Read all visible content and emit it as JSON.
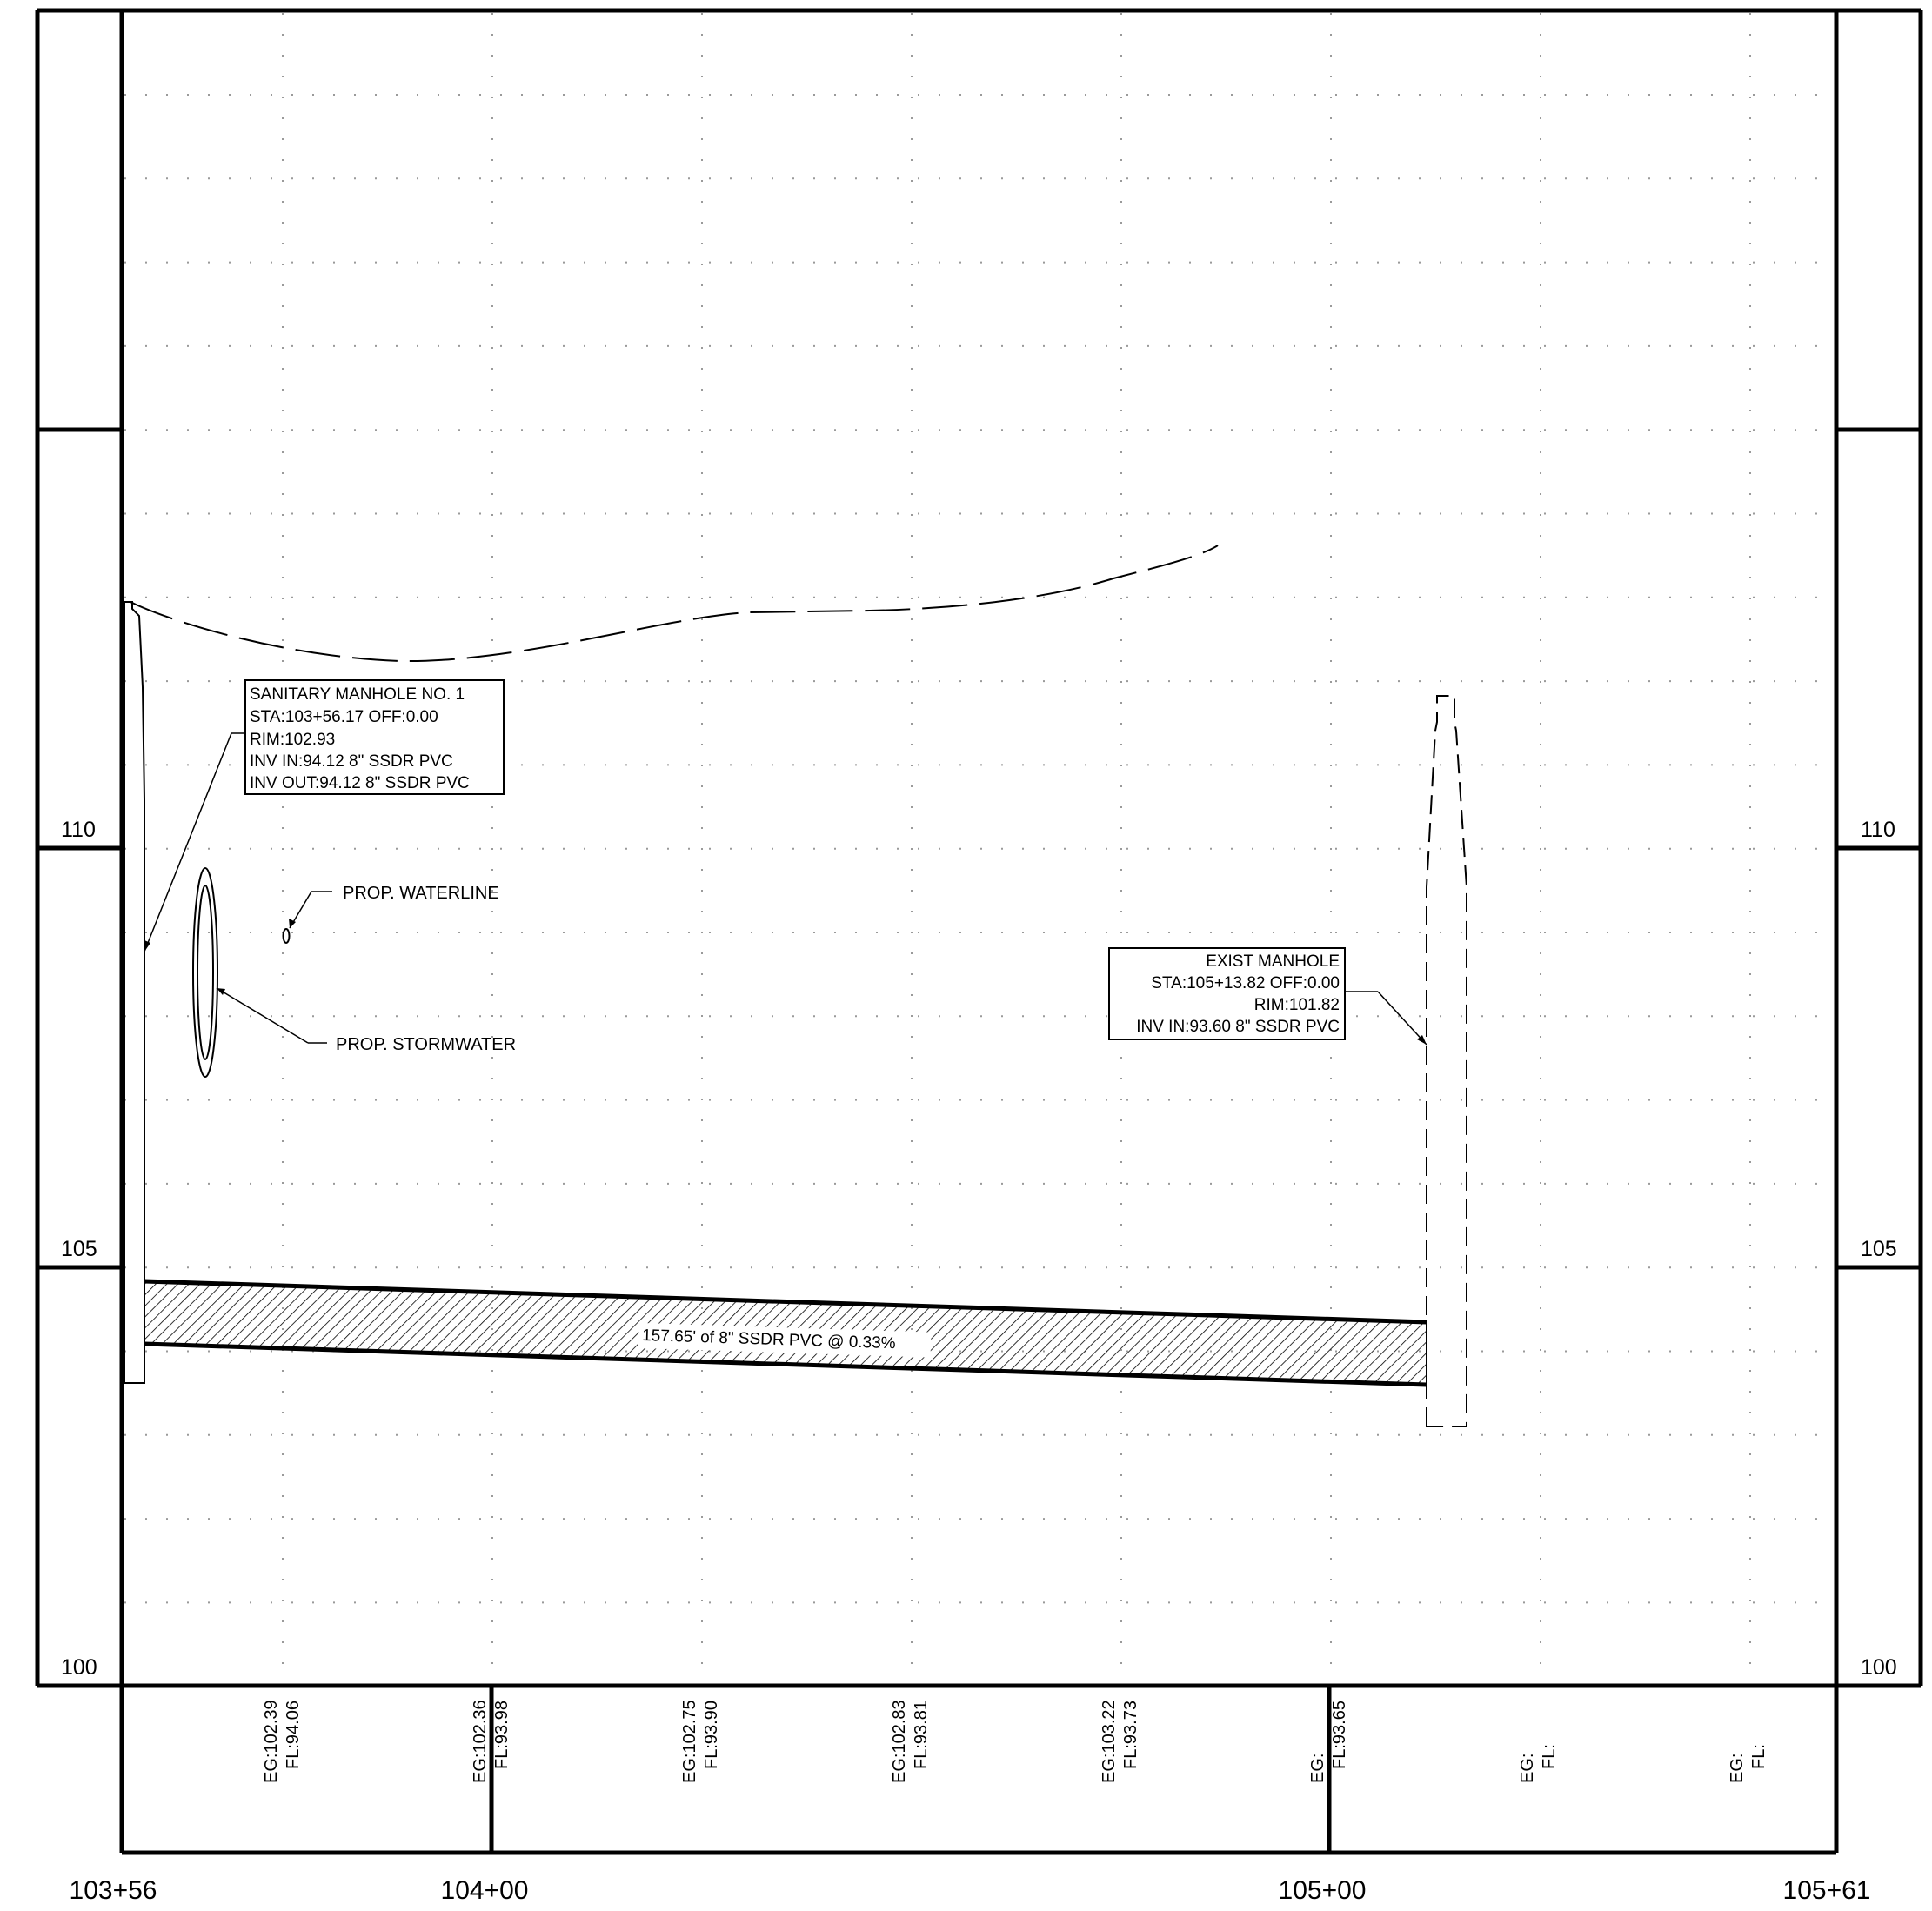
{
  "elevation_labels": {
    "left": [
      "110",
      "105",
      "100"
    ],
    "right": [
      "110",
      "105",
      "100"
    ]
  },
  "station_labels": [
    "103+56",
    "104+00",
    "105+00",
    "105+61"
  ],
  "profile_band": [
    {
      "eg": "EG:102.39",
      "fl": "FL:94.06"
    },
    {
      "eg": "EG:102.36",
      "fl": "FL:93.98"
    },
    {
      "eg": "EG:102.75",
      "fl": "FL:93.90"
    },
    {
      "eg": "EG:102.83",
      "fl": "FL:93.81"
    },
    {
      "eg": "EG:103.22",
      "fl": "FL:93.73"
    },
    {
      "eg": "EG:",
      "fl": "FL:93.65"
    },
    {
      "eg": "EG:",
      "fl": "FL:"
    },
    {
      "eg": "EG:",
      "fl": "FL:"
    }
  ],
  "callouts": {
    "sanitary_manhole": [
      "SANITARY MANHOLE NO. 1",
      "STA:103+56.17 OFF:0.00",
      "RIM:102.93",
      "INV IN:94.12 8\" SSDR PVC",
      "INV OUT:94.12 8\" SSDR PVC"
    ],
    "exist_manhole": [
      "EXIST MANHOLE",
      "STA:105+13.82 OFF:0.00",
      "RIM:101.82",
      "INV IN:93.60 8\" SSDR PVC"
    ],
    "waterline": "PROP. WATERLINE",
    "stormwater": "PROP. STORMWATER",
    "pipe_label": "157.65' of 8\" SSDR PVC @ 0.33%"
  },
  "colors": {
    "line": "#000000",
    "grid_dot": "#9a9a9a",
    "background": "#ffffff"
  }
}
